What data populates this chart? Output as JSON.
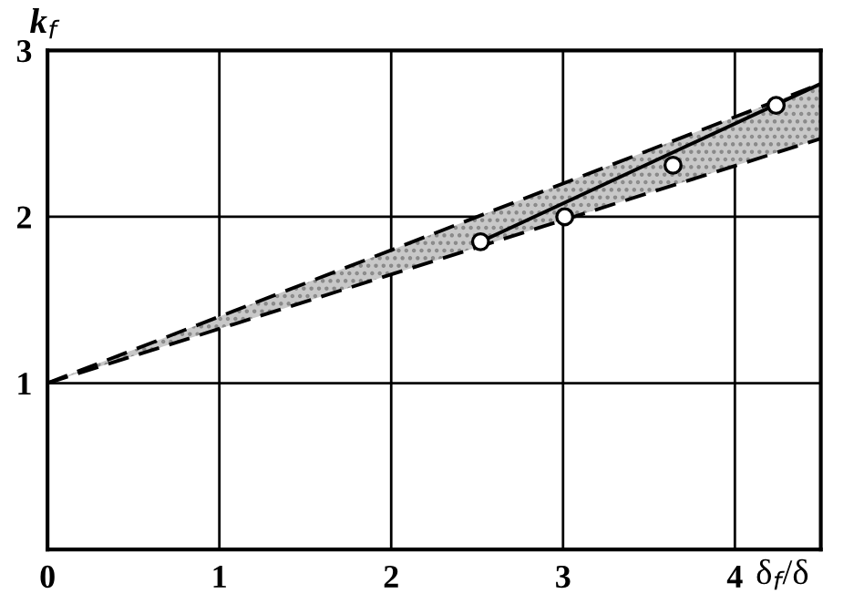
{
  "chart_data": {
    "type": "line",
    "xlabel": "δ$_{f}$/δ",
    "ylabel": "k$_{f}$",
    "xlim": [
      0,
      4.5
    ],
    "ylim": [
      0,
      3
    ],
    "xticks": [
      0,
      1,
      2,
      3,
      4
    ],
    "yticks": [
      {
        "value": 0,
        "label": null
      },
      1,
      2,
      3
    ],
    "grid": true,
    "series": [
      {
        "x": [
          0,
          4.5
        ],
        "values": [
          1,
          2.8
        ],
        "lower": [
          1,
          2.47
        ],
        "upper": [
          1,
          2.8
        ],
        "color": "#000000",
        "line_style": "dashed"
      },
      {
        "x": [
          0,
          4.5
        ],
        "values": [
          1,
          2.47
        ],
        "color": "#000000",
        "line_style": "dashed"
      },
      {
        "x": [
          2.52,
          4.5
        ],
        "values": [
          1.85,
          2.8
        ],
        "color": "#000000",
        "line_style": "solid",
        "marker": "none"
      },
      {
        "type": "scatter",
        "x": [
          2.52,
          3.01,
          3.64,
          4.24
        ],
        "values": [
          1.85,
          2.0,
          2.31,
          2.67
        ],
        "color": "#000000",
        "marker": "circle"
      }
    ]
  }
}
